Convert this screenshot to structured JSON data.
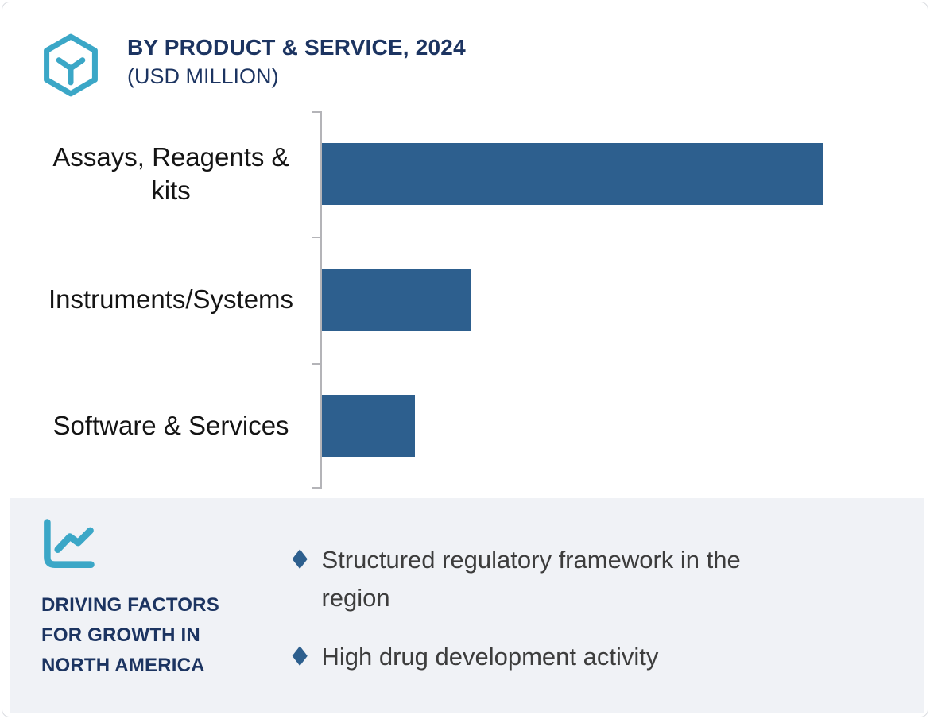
{
  "header": {
    "title": "BY PRODUCT & SERVICE, 2024",
    "subtitle": "(USD MILLION)",
    "icon": "hexagon-molecule-icon"
  },
  "chart_data": {
    "type": "bar",
    "orientation": "horizontal",
    "title": "BY PRODUCT & SERVICE, 2024 (USD MILLION)",
    "categories": [
      "Assays, Reagents & kits",
      "Instruments/Systems",
      "Software & Services"
    ],
    "values": [
      100,
      29.7,
      18.6
    ],
    "units": "relative share of longest bar (value axis unlabeled in source)",
    "value_labels_shown": false,
    "grid": false,
    "legend": false,
    "bar_color": "#2D5F8E"
  },
  "driving_factors": {
    "icon": "line-chart-icon",
    "heading": "DRIVING FACTORS FOR GROWTH IN NORTH AMERICA",
    "bullet_glyph": "♦",
    "items": [
      "Structured regulatory framework in the region",
      "High drug development activity"
    ]
  },
  "colors": {
    "accent_teal": "#3BA7C7",
    "bar_blue": "#2D5F8E",
    "navy_text": "#1C3461",
    "panel_bg": "#F0F2F6",
    "axis_gray": "#B4B4B8",
    "label_text": "#141414",
    "body_text": "#3D3D3D",
    "border": "#D9DBE0"
  }
}
